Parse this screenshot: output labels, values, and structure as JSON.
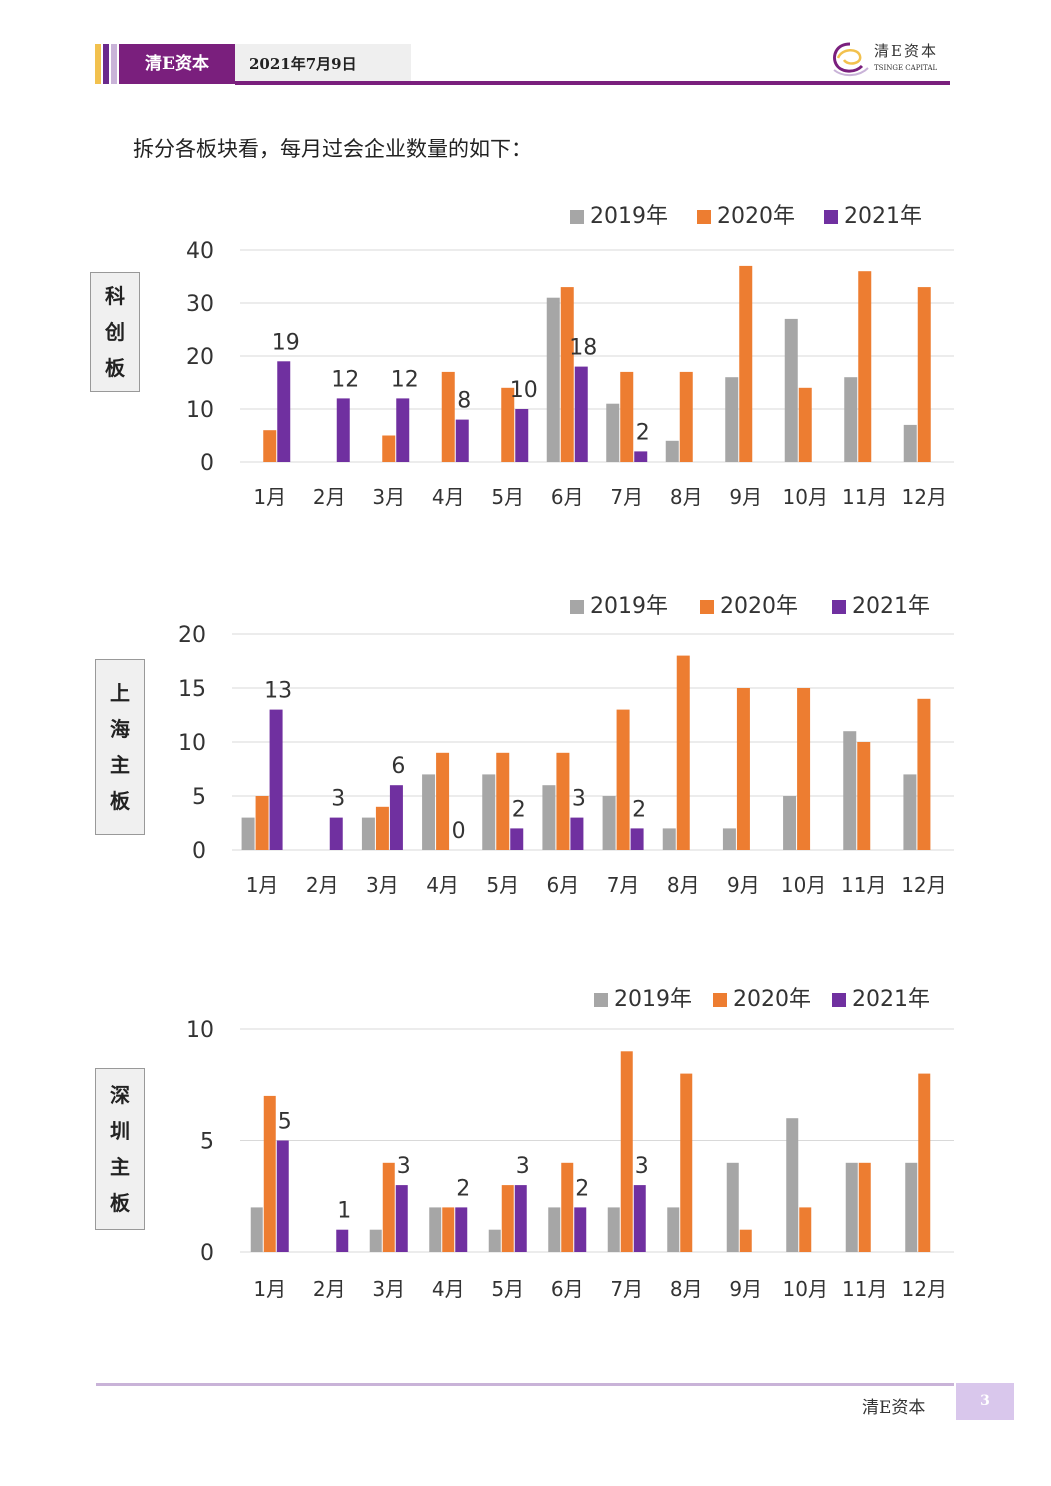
{
  "header": {
    "brand": "清E资本",
    "date": "2021年7月9日"
  },
  "logo": {
    "name": "清E资本",
    "sub": "TSINGE CAPITAL"
  },
  "intro": "拆分各板块看，每月过会企业数量的如下：",
  "colors": {
    "y2019": "#a6a6a6",
    "y2020": "#ed7d31",
    "y2021": "#7030a0",
    "grid": "#d9d9d9",
    "purple": "#7a1f7d"
  },
  "chart_data": [
    {
      "type": "bar",
      "board": [
        "科",
        "创",
        "板"
      ],
      "categories": [
        "1月",
        "2月",
        "3月",
        "4月",
        "5月",
        "6月",
        "7月",
        "8月",
        "9月",
        "10月",
        "11月",
        "12月"
      ],
      "ylim": [
        0,
        40
      ],
      "yticks": [
        0,
        10,
        20,
        30,
        40
      ],
      "grid": true,
      "legend": "top-right",
      "series": [
        {
          "name": "2019年",
          "values": [
            0,
            0,
            0,
            0,
            0,
            31,
            11,
            4,
            16,
            27,
            16,
            7
          ]
        },
        {
          "name": "2020年",
          "values": [
            6,
            0,
            5,
            17,
            14,
            33,
            17,
            17,
            37,
            14,
            36,
            33
          ]
        },
        {
          "name": "2021年",
          "values": [
            19,
            12,
            12,
            8,
            10,
            18,
            2,
            null,
            null,
            null,
            null,
            null
          ]
        }
      ],
      "data_labels": [
        "19",
        "12",
        "12",
        "8",
        "10",
        "18",
        "2"
      ]
    },
    {
      "type": "bar",
      "board": [
        "上",
        "海",
        "主",
        "板"
      ],
      "categories": [
        "1月",
        "2月",
        "3月",
        "4月",
        "5月",
        "6月",
        "7月",
        "8月",
        "9月",
        "10月",
        "11月",
        "12月"
      ],
      "ylim": [
        0,
        20
      ],
      "yticks": [
        0,
        5,
        10,
        15,
        20
      ],
      "grid": true,
      "legend": "top-right",
      "series": [
        {
          "name": "2019年",
          "values": [
            3,
            0,
            3,
            7,
            7,
            6,
            5,
            2,
            2,
            5,
            11,
            7
          ]
        },
        {
          "name": "2020年",
          "values": [
            5,
            0,
            4,
            9,
            9,
            9,
            13,
            18,
            15,
            15,
            10,
            14
          ]
        },
        {
          "name": "2021年",
          "values": [
            13,
            3,
            6,
            0,
            2,
            3,
            2,
            null,
            null,
            null,
            null,
            null
          ]
        }
      ],
      "data_labels": [
        "13",
        "3",
        "6",
        "0",
        "2",
        "3",
        "2"
      ]
    },
    {
      "type": "bar",
      "board": [
        "深",
        "圳",
        "主",
        "板"
      ],
      "categories": [
        "1月",
        "2月",
        "3月",
        "4月",
        "5月",
        "6月",
        "7月",
        "8月",
        "9月",
        "10月",
        "11月",
        "12月"
      ],
      "ylim": [
        0,
        10
      ],
      "yticks": [
        0,
        5,
        10
      ],
      "grid": true,
      "legend": "top-right",
      "series": [
        {
          "name": "2019年",
          "values": [
            2,
            0,
            1,
            2,
            1,
            2,
            2,
            2,
            4,
            6,
            4,
            4
          ]
        },
        {
          "name": "2020年",
          "values": [
            7,
            0,
            4,
            2,
            3,
            4,
            9,
            8,
            1,
            2,
            4,
            8
          ]
        },
        {
          "name": "2021年",
          "values": [
            5,
            1,
            3,
            2,
            3,
            2,
            3,
            null,
            null,
            null,
            null,
            null
          ]
        }
      ],
      "data_labels": [
        "5",
        "1",
        "3",
        "2",
        "3",
        "2",
        "3"
      ]
    }
  ],
  "footer": {
    "brand": "清E资本",
    "page": "3"
  }
}
